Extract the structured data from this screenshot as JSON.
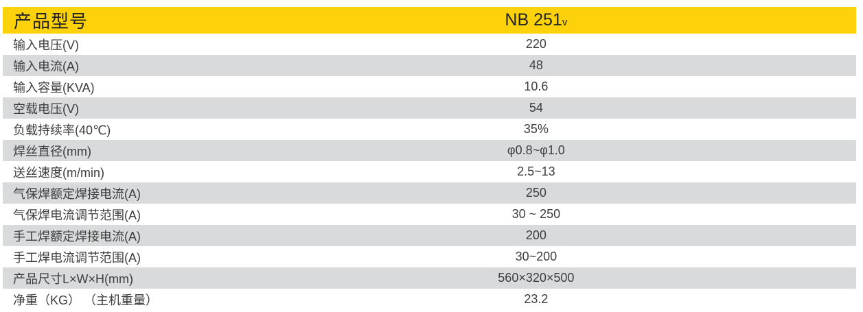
{
  "table": {
    "header": {
      "label": "产品型号",
      "model": "NB 251",
      "model_suffix": "v"
    },
    "rows": [
      {
        "label": "输入电压(V)",
        "value": "220"
      },
      {
        "label": "输入电流(A)",
        "value": "48"
      },
      {
        "label": "输入容量(KVA)",
        "value": "10.6"
      },
      {
        "label": "空载电压(V)",
        "value": "54"
      },
      {
        "label": "负载持续率(40℃)",
        "value": "35%"
      },
      {
        "label": "焊丝直径(mm)",
        "value": "φ0.8~φ1.0"
      },
      {
        "label": "送丝速度(m/min)",
        "value": "2.5~13"
      },
      {
        "label": "气保焊额定焊接电流(A)",
        "value": "250"
      },
      {
        "label": "气保焊电流调节范围(A)",
        "value": "30 ~ 250"
      },
      {
        "label": "手工焊额定焊接电流(A)",
        "value": "200"
      },
      {
        "label": "手工焊电流调节范围(A)",
        "value": "30~200"
      },
      {
        "label": "产品尺寸L×W×H(mm)",
        "value": "560×320×500"
      },
      {
        "label": "净重（KG） （主机重量）",
        "value": "23.2"
      }
    ]
  },
  "colors": {
    "header_bg": "#FDD20A",
    "row_alt_bg": "#D9DADB",
    "text": "#3D3D3D",
    "header_text": "#232323",
    "page_bg": "#FFFFFF"
  }
}
